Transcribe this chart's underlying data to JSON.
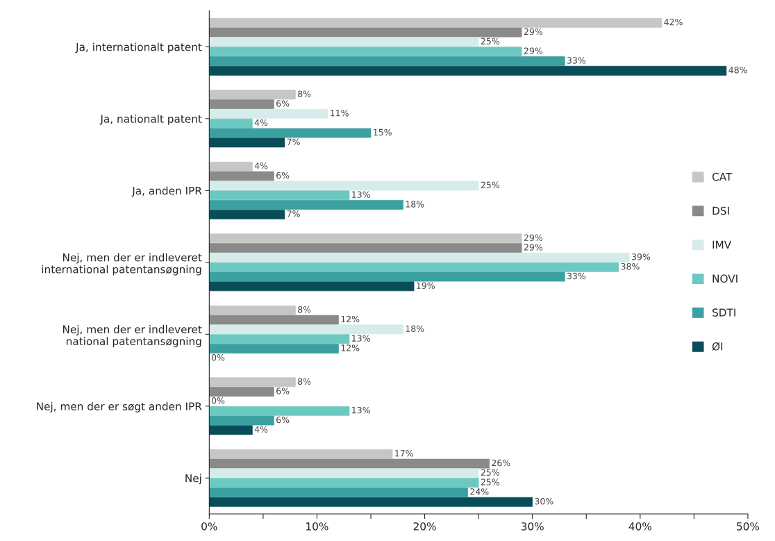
{
  "chart_data": {
    "type": "bar",
    "orientation": "horizontal",
    "categories": [
      "Ja, internationalt patent",
      "Ja, nationalt patent",
      "Ja, anden IPR",
      "Nej, men der er indleveret\ninternational patentansøgning",
      "Nej, men der er indleveret\nnational patentansøgning",
      "Nej, men der er søgt anden IPR",
      "Nej"
    ],
    "series": [
      {
        "name": "CAT",
        "color": "#c6c6c4",
        "values": [
          42,
          8,
          4,
          29,
          8,
          8,
          17
        ],
        "value_labels": [
          "42%",
          "8%",
          "4%",
          "29%",
          "8%",
          "8%",
          "17%"
        ]
      },
      {
        "name": "DSI",
        "color": "#8a8a8a",
        "values": [
          29,
          6,
          6,
          29,
          12,
          6,
          26
        ],
        "value_labels": [
          "29%",
          "6%",
          "6%",
          "29%",
          "12%",
          "6%",
          "26%"
        ]
      },
      {
        "name": "IMV",
        "color": "#d6ecea",
        "values": [
          25,
          11,
          25,
          39,
          18,
          0,
          25
        ],
        "value_labels": [
          "25%",
          "11%",
          "25%",
          "39%",
          "18%",
          "0%",
          "25%"
        ]
      },
      {
        "name": "NOVI",
        "color": "#6cc8c0",
        "values": [
          29,
          4,
          13,
          38,
          13,
          13,
          25
        ],
        "value_labels": [
          "29%",
          "4%",
          "13%",
          "38%",
          "13%",
          "13%",
          "25%"
        ]
      },
      {
        "name": "SDTI",
        "color": "#3aa0a0",
        "values": [
          33,
          15,
          18,
          33,
          12,
          6,
          24
        ],
        "value_labels": [
          "33%",
          "15%",
          "18%",
          "33%",
          "12%",
          "6%",
          "24%"
        ]
      },
      {
        "name": "ØI",
        "color": "#0a4d5a",
        "values": [
          48,
          7,
          7,
          19,
          0,
          4,
          30
        ],
        "value_labels": [
          "48%",
          "7%",
          "7%",
          "19%",
          "0%",
          "4%",
          "30%"
        ]
      }
    ],
    "xlim": [
      0,
      50
    ],
    "xticks": [
      {
        "value": 0,
        "label": "0%"
      },
      {
        "value": 5,
        "label": null
      },
      {
        "value": 10,
        "label": "10%"
      },
      {
        "value": 15,
        "label": null
      },
      {
        "value": 20,
        "label": "20%"
      },
      {
        "value": 25,
        "label": null
      },
      {
        "value": 30,
        "label": "30%"
      },
      {
        "value": 35,
        "label": null
      },
      {
        "value": 40,
        "label": "40%"
      },
      {
        "value": 45,
        "label": null
      },
      {
        "value": 50,
        "label": "50%"
      }
    ],
    "legend": "right",
    "grid": false
  }
}
